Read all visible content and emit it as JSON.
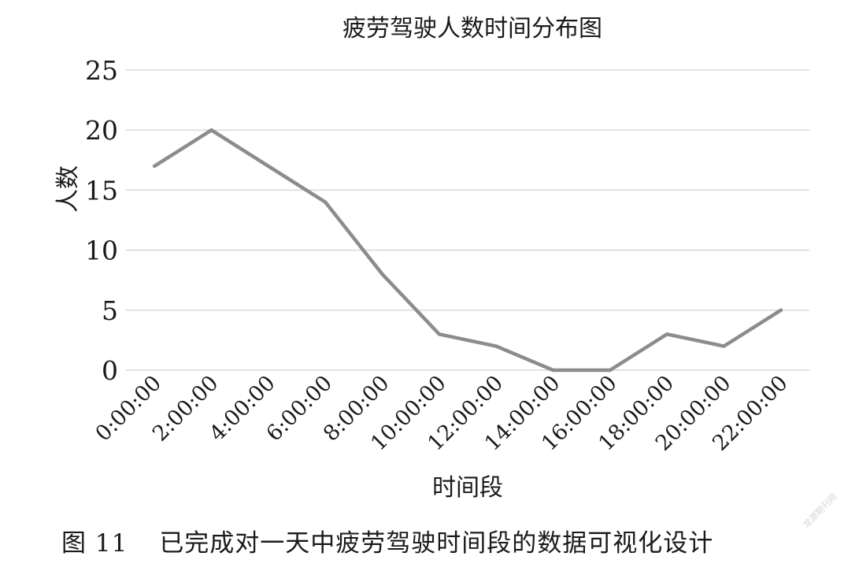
{
  "chart_data": {
    "type": "line",
    "title": "疲劳驾驶人数时间分布图",
    "xlabel": "时间段",
    "ylabel": "人数",
    "categories": [
      "0:00:00",
      "2:00:00",
      "4:00:00",
      "6:00:00",
      "8:00:00",
      "10:00:00",
      "12:00:00",
      "14:00:00",
      "16:00:00",
      "18:00:00",
      "20:00:00",
      "22:00:00"
    ],
    "series": [
      {
        "values": [
          17,
          20,
          17,
          14,
          8,
          3,
          2,
          0,
          0,
          3,
          2,
          5
        ],
        "color": "#8c8c8c"
      }
    ],
    "ylim": [
      0,
      25
    ],
    "yticks": [
      0,
      5,
      10,
      15,
      20,
      25
    ],
    "grid": true,
    "legend": "none",
    "colors": {
      "line": "#8c8c8c",
      "grid": "#d9d9d9",
      "text": "#1a1a1a"
    }
  },
  "caption": {
    "number": "图 11",
    "text": "已完成对一天中疲劳驾驶时间段的数据可视化设计"
  },
  "watermark": "龙源期刊网"
}
